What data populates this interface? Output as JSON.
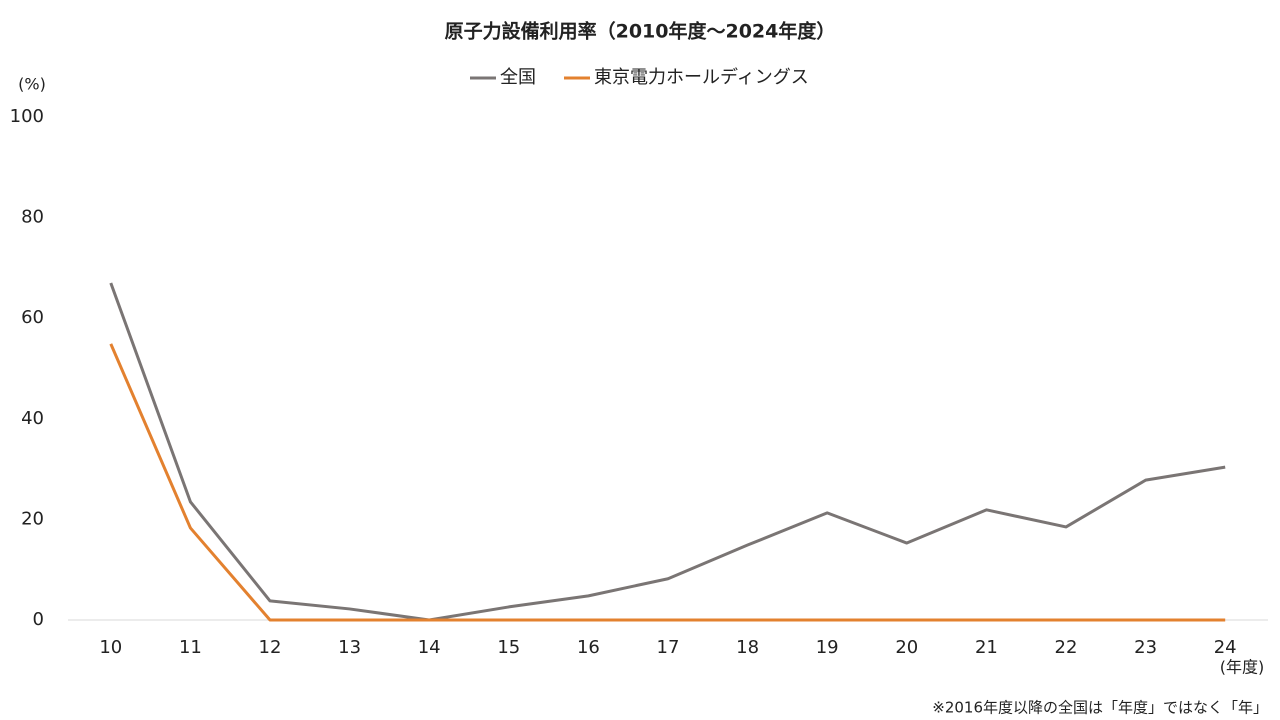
{
  "chart_data": {
    "type": "line",
    "title": "原子力設備利用率（2010年度～2024年度）",
    "y_label": "(%)",
    "x_label": "(年度)",
    "note": "※2016年度以降の全国は「年度」ではなく「年」",
    "categories": [
      "10",
      "11",
      "12",
      "13",
      "14",
      "15",
      "16",
      "17",
      "18",
      "19",
      "20",
      "21",
      "22",
      "23",
      "24"
    ],
    "series": [
      {
        "name": "全国",
        "color": "#7a7574",
        "values": [
          67.0,
          23.5,
          3.8,
          2.2,
          0,
          2.6,
          4.8,
          8.2,
          14.9,
          21.3,
          15.3,
          21.9,
          18.5,
          27.8,
          30.4
        ]
      },
      {
        "name": "東京電力ホールディングス",
        "color": "#e3812f",
        "values": [
          54.9,
          18.3,
          0,
          0,
          0,
          0,
          0,
          0,
          0,
          0,
          0,
          0,
          0,
          0,
          0
        ]
      }
    ],
    "ylim": [
      0,
      100
    ],
    "yticks": [
      0,
      20,
      40,
      60,
      80,
      100
    ],
    "grid": false,
    "legend": "top"
  }
}
